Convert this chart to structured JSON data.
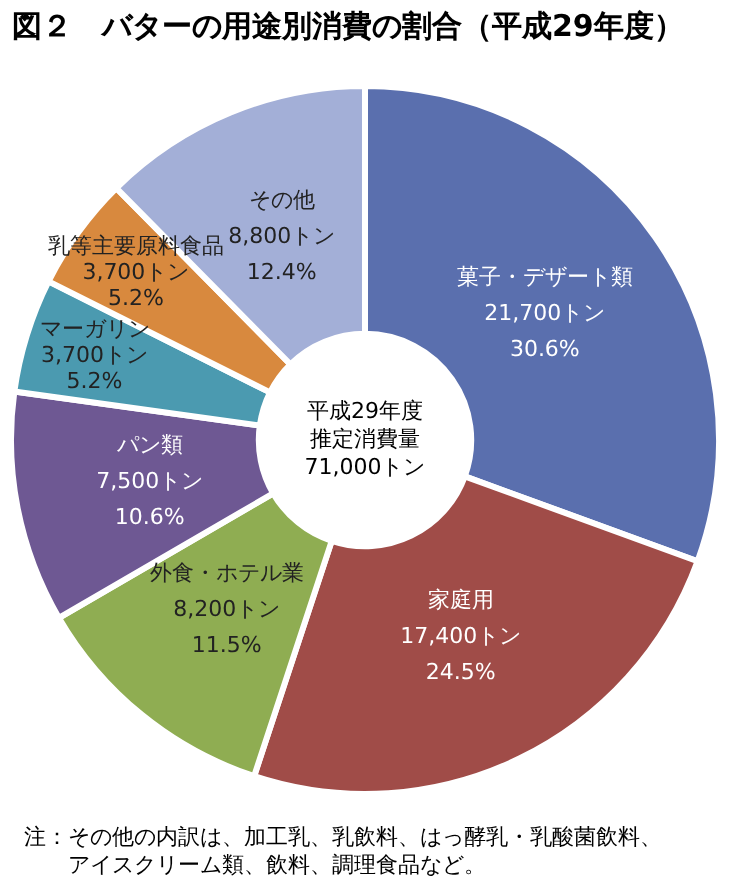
{
  "chart_data": {
    "type": "donut",
    "title": "図２　バターの用途別消費の割合（平成29年度）",
    "categories": [
      "菓子・デザート類",
      "家庭用",
      "外食・ホテル業",
      "パン類",
      "マーガリン",
      "乳等主要原料食品",
      "その他"
    ],
    "values": [
      21700,
      17400,
      8200,
      7500,
      3700,
      3700,
      8800
    ],
    "value_labels": [
      "21,700トン\n30.6%",
      "17,400トン\n24.5%",
      "8,200トン\n11.5%",
      "7,500トン\n10.6%",
      "3,700トン\n5.2%",
      "3,700トン\n5.2%",
      "8,800トン\n12.4%"
    ],
    "colors": [
      "#5a6fae",
      "#a04c48",
      "#8fad52",
      "#6e5893",
      "#4b9ab0",
      "#d8893e",
      "#a3afd7"
    ],
    "annotations": [
      "平成29年度",
      "推定消費量",
      "71,000トン",
      "注：その他の内訳は、加工乳、乳飲料、はっ酵乳・乳酸菌飲料、アイスクリーム類、飲料、調理食品など。"
    ],
    "legend": false
  }
}
